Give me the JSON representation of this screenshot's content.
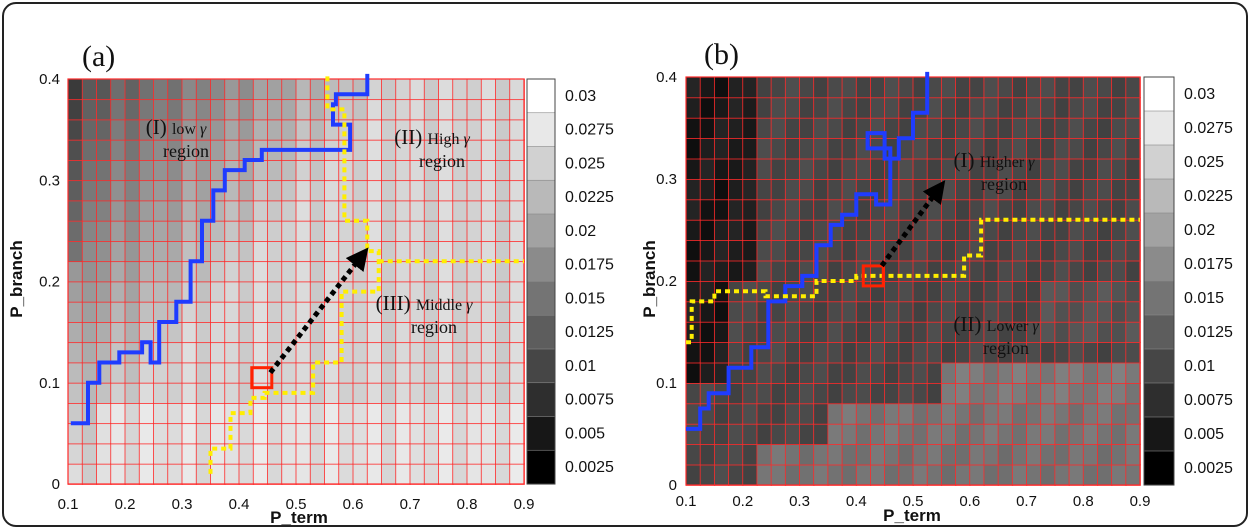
{
  "chart_data": [
    {
      "type": "heatmap",
      "panel_label": "(a)",
      "xlabel": "P_term",
      "ylabel": "P_branch",
      "xlim": [
        0.1,
        0.9
      ],
      "ylim": [
        0,
        0.4
      ],
      "x_ticks": [
        "0.1",
        "0.2",
        "0.3",
        "0.4",
        "0.5",
        "0.6",
        "0.7",
        "0.8",
        "0.9"
      ],
      "y_ticks": [
        "0",
        "0.1",
        "0.2",
        "0.3",
        "0.4"
      ],
      "grid": true,
      "grid_color": "#ff2a2a",
      "colorbar": {
        "ticks": [
          "0.03",
          "0.0275",
          "0.025",
          "0.0225",
          "0.02",
          "0.0175",
          "0.015",
          "0.0125",
          "0.01",
          "0.0075",
          "0.005",
          "0.0025"
        ],
        "low_color": "#000000",
        "high_color": "#ffffff",
        "range": [
          0.0025,
          0.03
        ]
      },
      "cell_size": [
        0.025,
        0.02
      ],
      "regions": [
        {
          "roman": "(I)",
          "text": "low",
          "gamma": "γ",
          "line2": "region"
        },
        {
          "roman": "(II)",
          "text": "High",
          "gamma": "γ",
          "line2": "region"
        },
        {
          "roman": "(III)",
          "text": "Middle",
          "gamma": "γ",
          "line2": "region"
        }
      ],
      "blue_boundary": [
        [
          0.105,
          0.06
        ],
        [
          0.135,
          0.06
        ],
        [
          0.135,
          0.1
        ],
        [
          0.155,
          0.1
        ],
        [
          0.155,
          0.12
        ],
        [
          0.19,
          0.12
        ],
        [
          0.19,
          0.13
        ],
        [
          0.23,
          0.13
        ],
        [
          0.23,
          0.14
        ],
        [
          0.245,
          0.14
        ],
        [
          0.245,
          0.12
        ],
        [
          0.26,
          0.12
        ],
        [
          0.26,
          0.16
        ],
        [
          0.29,
          0.16
        ],
        [
          0.29,
          0.18
        ],
        [
          0.315,
          0.18
        ],
        [
          0.315,
          0.22
        ],
        [
          0.335,
          0.22
        ],
        [
          0.335,
          0.26
        ],
        [
          0.355,
          0.26
        ],
        [
          0.355,
          0.29
        ],
        [
          0.375,
          0.29
        ],
        [
          0.375,
          0.31
        ],
        [
          0.41,
          0.31
        ],
        [
          0.41,
          0.32
        ],
        [
          0.44,
          0.32
        ],
        [
          0.44,
          0.33
        ],
        [
          0.595,
          0.33
        ],
        [
          0.595,
          0.355
        ],
        [
          0.565,
          0.355
        ],
        [
          0.565,
          0.375
        ],
        [
          0.57,
          0.375
        ],
        [
          0.57,
          0.385
        ],
        [
          0.625,
          0.385
        ],
        [
          0.625,
          0.405
        ]
      ],
      "yellow_boundary": [
        [
          0.35,
          0.01
        ],
        [
          0.35,
          0.035
        ],
        [
          0.385,
          0.035
        ],
        [
          0.385,
          0.07
        ],
        [
          0.42,
          0.07
        ],
        [
          0.42,
          0.085
        ],
        [
          0.445,
          0.085
        ],
        [
          0.445,
          0.09
        ],
        [
          0.53,
          0.09
        ],
        [
          0.53,
          0.12
        ],
        [
          0.58,
          0.12
        ],
        [
          0.58,
          0.19
        ],
        [
          0.645,
          0.19
        ],
        [
          0.645,
          0.23
        ],
        [
          0.625,
          0.23
        ],
        [
          0.625,
          0.26
        ],
        [
          0.585,
          0.26
        ],
        [
          0.585,
          0.37
        ],
        [
          0.555,
          0.37
        ],
        [
          0.555,
          0.405
        ]
      ],
      "yellow_boundary_branch": [
        [
          0.645,
          0.22
        ],
        [
          0.9,
          0.22
        ]
      ],
      "marker": {
        "x": 0.44,
        "y": 0.105
      },
      "arrow": {
        "from": [
          0.455,
          0.11
        ],
        "to": [
          0.615,
          0.225
        ]
      }
    },
    {
      "type": "heatmap",
      "panel_label": "(b)",
      "xlabel": "P_term",
      "ylabel": "P_branch",
      "xlim": [
        0.1,
        0.9
      ],
      "ylim": [
        0,
        0.4
      ],
      "x_ticks": [
        "0.1",
        "0.2",
        "0.3",
        "0.4",
        "0.5",
        "0.6",
        "0.7",
        "0.8",
        "0.9"
      ],
      "y_ticks": [
        "0",
        "0.1",
        "0.2",
        "0.3",
        "0.4"
      ],
      "grid": true,
      "grid_color": "#ff2a2a",
      "colorbar": {
        "ticks": [
          "0.03",
          "0.0275",
          "0.025",
          "0.0225",
          "0.02",
          "0.0175",
          "0.015",
          "0.0125",
          "0.01",
          "0.0075",
          "0.005",
          "0.0025"
        ],
        "low_color": "#000000",
        "high_color": "#ffffff",
        "range": [
          0.0025,
          0.03
        ]
      },
      "cell_size": [
        0.025,
        0.02
      ],
      "regions": [
        {
          "roman": "(I)",
          "text": "Higher",
          "gamma": "γ",
          "line2": "region"
        },
        {
          "roman": "(II)",
          "text": "Lower",
          "gamma": "γ",
          "line2": "region"
        }
      ],
      "blue_boundary": [
        [
          0.1,
          0.055
        ],
        [
          0.125,
          0.055
        ],
        [
          0.125,
          0.075
        ],
        [
          0.14,
          0.075
        ],
        [
          0.14,
          0.09
        ],
        [
          0.175,
          0.09
        ],
        [
          0.175,
          0.115
        ],
        [
          0.215,
          0.115
        ],
        [
          0.215,
          0.135
        ],
        [
          0.245,
          0.135
        ],
        [
          0.245,
          0.18
        ],
        [
          0.275,
          0.18
        ],
        [
          0.275,
          0.195
        ],
        [
          0.305,
          0.195
        ],
        [
          0.305,
          0.205
        ],
        [
          0.33,
          0.205
        ],
        [
          0.33,
          0.235
        ],
        [
          0.355,
          0.235
        ],
        [
          0.355,
          0.255
        ],
        [
          0.375,
          0.255
        ],
        [
          0.375,
          0.265
        ],
        [
          0.4,
          0.265
        ],
        [
          0.4,
          0.285
        ],
        [
          0.435,
          0.285
        ],
        [
          0.435,
          0.275
        ],
        [
          0.46,
          0.275
        ],
        [
          0.46,
          0.33
        ],
        [
          0.42,
          0.33
        ],
        [
          0.42,
          0.345
        ],
        [
          0.45,
          0.345
        ],
        [
          0.45,
          0.32
        ],
        [
          0.475,
          0.32
        ],
        [
          0.475,
          0.34
        ],
        [
          0.5,
          0.34
        ],
        [
          0.5,
          0.365
        ],
        [
          0.525,
          0.365
        ],
        [
          0.525,
          0.405
        ]
      ],
      "yellow_boundary": [
        [
          0.1,
          0.14
        ],
        [
          0.11,
          0.14
        ],
        [
          0.11,
          0.18
        ],
        [
          0.15,
          0.18
        ],
        [
          0.15,
          0.19
        ],
        [
          0.24,
          0.19
        ],
        [
          0.24,
          0.185
        ],
        [
          0.33,
          0.185
        ],
        [
          0.33,
          0.2
        ],
        [
          0.4,
          0.2
        ],
        [
          0.4,
          0.205
        ],
        [
          0.59,
          0.205
        ],
        [
          0.59,
          0.225
        ],
        [
          0.62,
          0.225
        ],
        [
          0.62,
          0.26
        ],
        [
          0.9,
          0.26
        ]
      ],
      "marker": {
        "x": 0.43,
        "y": 0.205
      },
      "arrow": {
        "from": [
          0.445,
          0.215
        ],
        "to": [
          0.545,
          0.29
        ]
      }
    }
  ]
}
